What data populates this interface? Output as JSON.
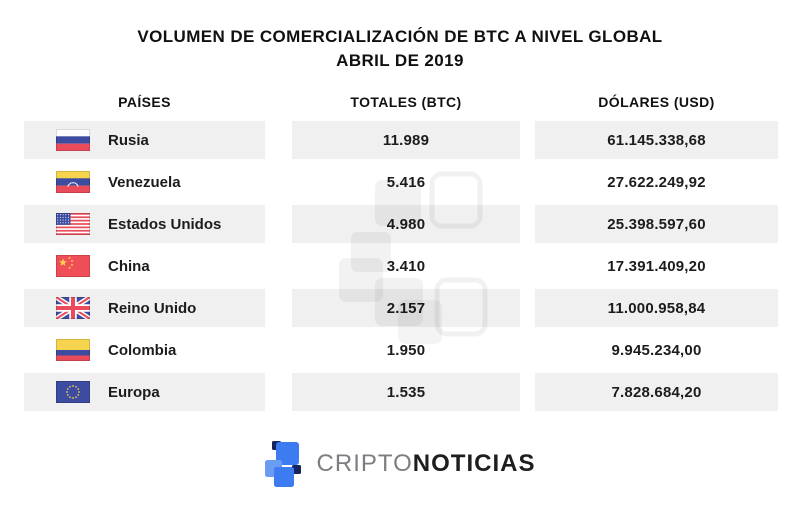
{
  "title": {
    "line1": "VOLUMEN DE COMERCIALIZACIÓN DE BTC A NIVEL GLOBAL",
    "line2": "ABRIL DE 2019"
  },
  "table": {
    "columns": [
      "PAÍSES",
      "TOTALES (BTC)",
      "DÓLARES (USD)"
    ],
    "rows": [
      {
        "country": "Rusia",
        "flag": "russia",
        "btc": "11.989",
        "usd": "61.145.338,68"
      },
      {
        "country": "Venezuela",
        "flag": "venezuela",
        "btc": "5.416",
        "usd": "27.622.249,92"
      },
      {
        "country": "Estados Unidos",
        "flag": "usa",
        "btc": "4.980",
        "usd": "25.398.597,60"
      },
      {
        "country": "China",
        "flag": "china",
        "btc": "3.410",
        "usd": "17.391.409,20"
      },
      {
        "country": "Reino Unido",
        "flag": "uk",
        "btc": "2.157",
        "usd": "11.000.958,84"
      },
      {
        "country": "Colombia",
        "flag": "colombia",
        "btc": "1.950",
        "usd": "9.945.234,00"
      },
      {
        "country": "Europa",
        "flag": "europe",
        "btc": "1.535",
        "usd": "7.828.684,20"
      }
    ],
    "row_colors": {
      "odd_bg": "#f1f0f0",
      "even_bg": "#ffffff"
    }
  },
  "chart_data": {
    "type": "table",
    "title": "VOLUMEN DE COMERCIALIZACIÓN DE BTC A NIVEL GLOBAL ABRIL DE 2019",
    "columns": [
      "PAÍSES",
      "TOTALES (BTC)",
      "DÓLARES (USD)"
    ],
    "rows": [
      [
        "Rusia",
        11989,
        61145338.68
      ],
      [
        "Venezuela",
        5416,
        27622249.92
      ],
      [
        "Estados Unidos",
        4980,
        25398597.6
      ],
      [
        "China",
        3410,
        17391409.2
      ],
      [
        "Reino Unido",
        2157,
        11000958.84
      ],
      [
        "Colombia",
        1950,
        9945234.0
      ],
      [
        "Europa",
        1535,
        7828684.2
      ]
    ]
  },
  "footer": {
    "brand_prefix": "CRIPTO",
    "brand_suffix": "NOTICIAS",
    "brand_prefix_color": "#7d7e82",
    "brand_suffix_color": "#1e1e1e",
    "logo_blue": "#3c7bf0",
    "logo_light_blue": "#6b9cf4",
    "logo_dark": "#16255f"
  }
}
